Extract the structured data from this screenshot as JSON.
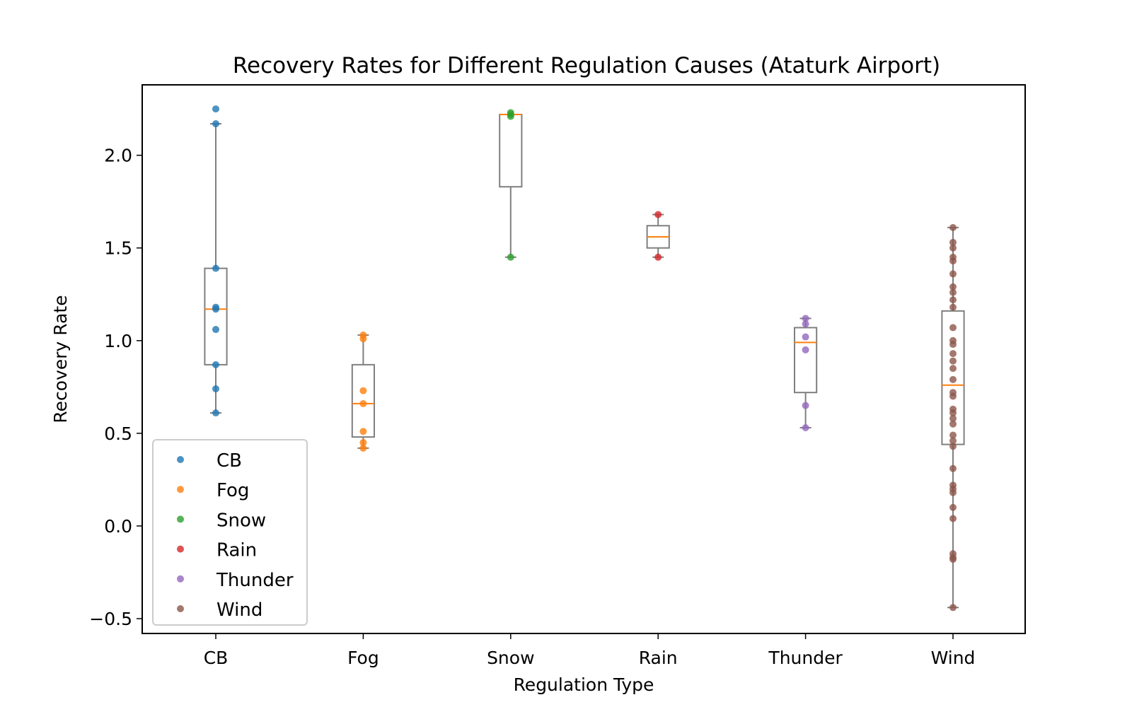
{
  "chart_data": {
    "type": "box",
    "title": "Recovery Rates for Different Regulation Causes (Ataturk Airport)",
    "xlabel": "Regulation Type",
    "ylabel": "Recovery Rate",
    "ylim": [
      -0.58,
      2.38
    ],
    "yticks": [
      -0.5,
      0.0,
      0.5,
      1.0,
      1.5,
      2.0
    ],
    "ytick_labels": [
      "−0.5",
      "0.0",
      "0.5",
      "1.0",
      "1.5",
      "2.0"
    ],
    "categories": [
      "CB",
      "Fog",
      "Snow",
      "Rain",
      "Thunder",
      "Wind"
    ],
    "grid": false,
    "legend_position": "lower-left",
    "series": [
      {
        "name": "CB",
        "color": "#1f77b4",
        "box": {
          "whisker_low": 0.61,
          "q1": 0.87,
          "median": 1.17,
          "q3": 1.39,
          "whisker_high": 2.17
        },
        "points": [
          0.61,
          0.74,
          0.87,
          1.06,
          1.17,
          1.18,
          1.39,
          2.17,
          2.25
        ]
      },
      {
        "name": "Fog",
        "color": "#ff7f0e",
        "box": {
          "whisker_low": 0.42,
          "q1": 0.48,
          "median": 0.66,
          "q3": 0.87,
          "whisker_high": 1.03
        },
        "points": [
          0.42,
          0.45,
          0.51,
          0.66,
          0.73,
          1.01,
          1.03
        ]
      },
      {
        "name": "Snow",
        "color": "#2ca02c",
        "box": {
          "whisker_low": 1.45,
          "q1": 1.83,
          "median": 2.22,
          "q3": 2.22,
          "whisker_high": 2.22
        },
        "points": [
          1.45,
          2.21,
          2.22,
          2.23
        ]
      },
      {
        "name": "Rain",
        "color": "#d62728",
        "box": {
          "whisker_low": 1.45,
          "q1": 1.5,
          "median": 1.56,
          "q3": 1.62,
          "whisker_high": 1.68
        },
        "points": [
          1.45,
          1.68
        ]
      },
      {
        "name": "Thunder",
        "color": "#9467bd",
        "box": {
          "whisker_low": 0.53,
          "q1": 0.72,
          "median": 0.99,
          "q3": 1.07,
          "whisker_high": 1.12
        },
        "points": [
          0.53,
          0.65,
          0.95,
          1.02,
          1.09,
          1.12
        ]
      },
      {
        "name": "Wind",
        "color": "#8c564b",
        "box": {
          "whisker_low": -0.44,
          "q1": 0.44,
          "median": 0.76,
          "q3": 1.16,
          "whisker_high": 1.61
        },
        "points": [
          -0.44,
          -0.18,
          -0.17,
          -0.15,
          0.04,
          0.1,
          0.18,
          0.2,
          0.22,
          0.31,
          0.43,
          0.46,
          0.49,
          0.55,
          0.58,
          0.61,
          0.63,
          0.7,
          0.72,
          0.79,
          0.85,
          0.89,
          0.93,
          0.98,
          1.0,
          1.07,
          1.18,
          1.22,
          1.26,
          1.29,
          1.36,
          1.43,
          1.45,
          1.5,
          1.53,
          1.61
        ]
      }
    ]
  }
}
